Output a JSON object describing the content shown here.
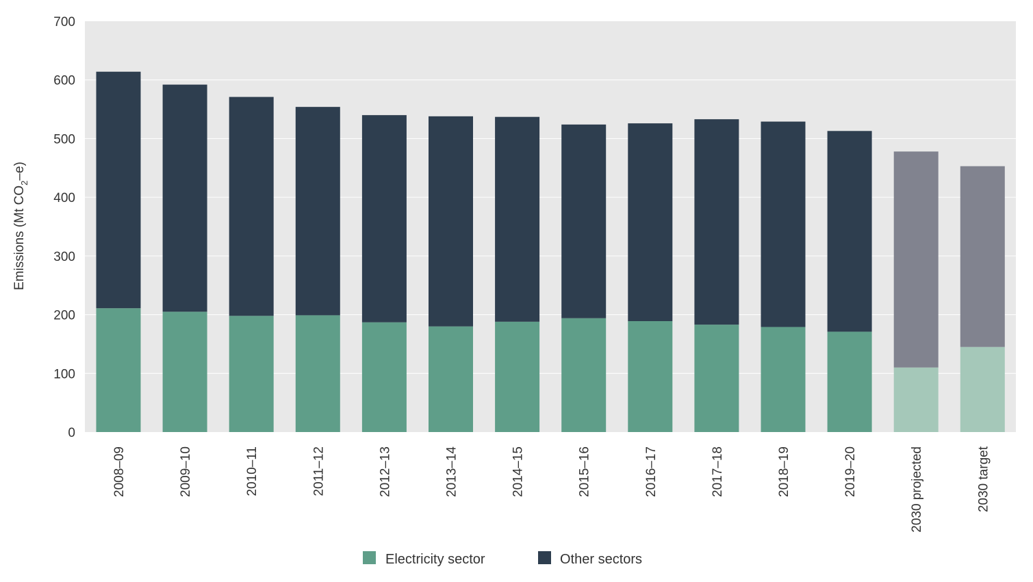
{
  "chart_data": {
    "type": "bar",
    "stacked": true,
    "ylabel": {
      "prefix": "Emissions (Mt CO",
      "subscript": "2",
      "suffix": "–e)"
    },
    "ylim": [
      0,
      700
    ],
    "yticks": [
      0,
      100,
      200,
      300,
      400,
      500,
      600,
      700
    ],
    "grid": true,
    "legend_position": "bottom-center",
    "categories": [
      "2008–09",
      "2009–10",
      "2010–11",
      "2011–12",
      "2012–13",
      "2013–14",
      "2014–15",
      "2015–16",
      "2016–17",
      "2017–18",
      "2018–19",
      "2019–20",
      "2030 projected",
      "2030 target"
    ],
    "series": [
      {
        "name": "Electricity sector",
        "color": "#5f9e89",
        "lighter_color": "#a5c8b9",
        "values": [
          211,
          205,
          198,
          199,
          187,
          180,
          188,
          194,
          189,
          183,
          179,
          171,
          110,
          145
        ]
      },
      {
        "name": "Other sectors",
        "color": "#2e3e4f",
        "lighter_color": "#81838f",
        "values": [
          403,
          387,
          373,
          355,
          353,
          358,
          349,
          330,
          337,
          350,
          350,
          342,
          368,
          308
        ]
      }
    ],
    "lighter_categories": [
      "2030 projected",
      "2030 target"
    ],
    "background_color": "#e8e8e8",
    "grid_color": "#ffffff"
  }
}
